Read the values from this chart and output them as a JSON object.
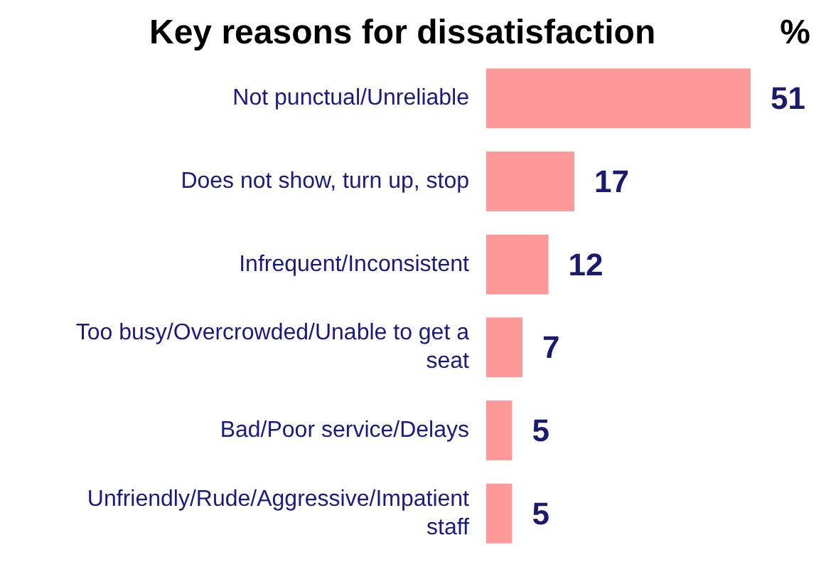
{
  "chart_data": {
    "type": "bar",
    "orientation": "horizontal",
    "title": "Key reasons for dissatisfaction",
    "xlabel": "%",
    "categories": [
      "Not punctual/Unreliable",
      "Does not show, turn up, stop",
      "Infrequent/Inconsistent",
      "Too busy/Overcrowded/Unable to get a seat",
      "Bad/Poor service/Delays",
      "Unfriendly/Rude/Aggressive/Impatient staff"
    ],
    "values": [
      51,
      17,
      12,
      7,
      5,
      5
    ],
    "color": "#ff9999",
    "data_labels": true
  }
}
